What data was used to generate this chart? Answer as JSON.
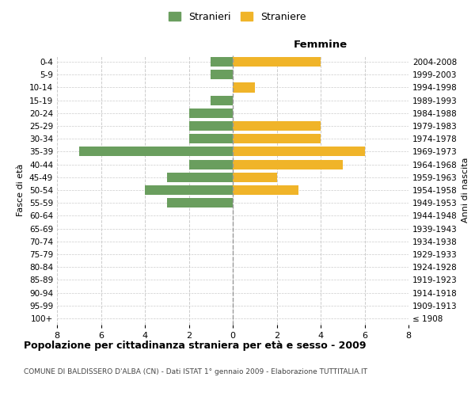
{
  "age_groups": [
    "100+",
    "95-99",
    "90-94",
    "85-89",
    "80-84",
    "75-79",
    "70-74",
    "65-69",
    "60-64",
    "55-59",
    "50-54",
    "45-49",
    "40-44",
    "35-39",
    "30-34",
    "25-29",
    "20-24",
    "15-19",
    "10-14",
    "5-9",
    "0-4"
  ],
  "birth_years": [
    "≤ 1908",
    "1909-1913",
    "1914-1918",
    "1919-1923",
    "1924-1928",
    "1929-1933",
    "1934-1938",
    "1939-1943",
    "1944-1948",
    "1949-1953",
    "1954-1958",
    "1959-1963",
    "1964-1968",
    "1969-1973",
    "1974-1978",
    "1979-1983",
    "1984-1988",
    "1989-1993",
    "1994-1998",
    "1999-2003",
    "2004-2008"
  ],
  "males": [
    0,
    0,
    0,
    0,
    0,
    0,
    0,
    0,
    0,
    3,
    4,
    3,
    2,
    7,
    2,
    2,
    2,
    1,
    0,
    1,
    1
  ],
  "females": [
    0,
    0,
    0,
    0,
    0,
    0,
    0,
    0,
    0,
    0,
    3,
    2,
    5,
    6,
    4,
    4,
    0,
    0,
    1,
    0,
    4
  ],
  "male_color": "#6a9e5e",
  "female_color": "#f0b429",
  "background_color": "#ffffff",
  "grid_color": "#cccccc",
  "title": "Popolazione per cittadinanza straniera per età e sesso - 2009",
  "subtitle": "COMUNE DI BALDISSERO D'ALBA (CN) - Dati ISTAT 1° gennaio 2009 - Elaborazione TUTTITALIA.IT",
  "xlabel_right": "Femmine",
  "ylabel_left": "Fasce di età",
  "ylabel_right": "Anni di nascita",
  "legend_male": "Stranieri",
  "legend_female": "Straniere",
  "xlim": 8,
  "bar_height": 0.75
}
